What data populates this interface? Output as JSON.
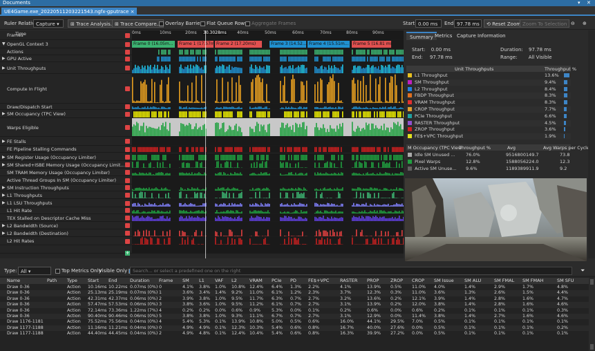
{
  "window": {
    "title": "Documents"
  },
  "tab": {
    "label": "UE4Game.exe_20220511203221543.ngfx-gputrace",
    "close": "×"
  },
  "toolbar": {
    "ruler_label": "Ruler Relative",
    "ruler_value": "Capture",
    "trace_analysis": "Trace Analysis...",
    "trace_compare": "Trace Compare...",
    "overlay_barriers": "Overlay Barriers",
    "flat_queue_rows": "Flat Queue Rows",
    "aggregate_frames": "Aggregate Frames",
    "start_label": "Start:",
    "start_value": "0.00 ms",
    "end_label": "End:",
    "end_value": "97.78 ms",
    "reset_zoom": "Reset Zoom",
    "zoom_to_selection": "Zoom To Selection"
  },
  "timeline": {
    "time_label": "Time",
    "ticks": [
      "0ms",
      "10ms",
      "20ms",
      "30.3028ms",
      "40ms",
      "50ms",
      "60ms",
      "70ms",
      "80ms",
      "90ms"
    ],
    "frames": [
      "Frame 0 (16.05m...",
      "Frame 1 (17.57ms)",
      "Frame 2 (17.20ms)",
      "Frame 3 (14.52...",
      "Frame 4 (15.51m...",
      "Frame 5 (16.81 ms)"
    ],
    "rows": [
      "Frames",
      "OpenGL Context 3",
      "Actions",
      "GPU Active",
      "Unit Throughputs",
      "Compute In Flight",
      "Draw/Dispatch Start",
      "SM Occupancy (TPC View)",
      "Warps Eligible",
      "FE Stalls",
      "FE Pipeline Stalling Commands",
      "SM Register Usage (Occupancy Limiter)",
      "SM Shared+ISBE Memory Usage (Occupancy Limit...",
      "SM TRAM Memory Usage (Occupancy Limiter)",
      "Active Thread Groups In SM (Occupancy Limiter)",
      "SM Instruction Throughputs",
      "L1 Throughputs",
      "L1 LSU Throughputs",
      "L1 Hit Rate",
      "TEX Stalled on Descriptor Cache Miss",
      "L2 Bandwidth (Source)",
      "L2 Bandwidth (Destination)",
      "L2 Hit Rates"
    ]
  },
  "right": {
    "tabs": [
      "Summary",
      "Metrics",
      "Capture Information"
    ],
    "start_label": "Start:",
    "start_value": "0.00 ms",
    "end_label": "End:",
    "end_value": "97.78 ms",
    "duration_label": "Duration:",
    "duration_value": "97.78 ms",
    "range_label": "Range:",
    "range_value": "All Visible",
    "unit_header": "Unit Throughputs",
    "unit_pct_header": "Throughput %",
    "units": [
      {
        "name": "L1 Throughput",
        "pct": "13.6%",
        "v": 13.6,
        "color": "#e8c020"
      },
      {
        "name": "SM Throughput",
        "pct": "9.4%",
        "v": 9.4,
        "color": "#c020c0"
      },
      {
        "name": "L2 Throughput",
        "pct": "8.4%",
        "v": 8.4,
        "color": "#2080e0"
      },
      {
        "name": "FBDP Throughput",
        "pct": "8.3%",
        "v": 8.3,
        "color": "#e07020"
      },
      {
        "name": "VRAM Throughput",
        "pct": "8.3%",
        "v": 8.3,
        "color": "#e03030"
      },
      {
        "name": "CROP Throughput",
        "pct": "7.7%",
        "v": 7.7,
        "color": "#e0a030"
      },
      {
        "name": "PCIe Throughput",
        "pct": "6.6%",
        "v": 6.6,
        "color": "#20a0a0"
      },
      {
        "name": "RASTER Throughput",
        "pct": "4.5%",
        "v": 4.5,
        "color": "#9050d0"
      },
      {
        "name": "ZROP Throughput",
        "pct": "3.6%",
        "v": 3.6,
        "color": "#d02020"
      },
      {
        "name": "FE$+VPC Throughput",
        "pct": "1.9%",
        "v": 1.9,
        "color": "#e0e020"
      }
    ],
    "occ_headers": [
      "M Occupancy (TPC View",
      "Throughput %",
      "Avg",
      "Avg Warps per Cycle"
    ],
    "occ": [
      {
        "name": "Idle SM Unused ...",
        "pct": "76.0%",
        "avg": "9516800149.7",
        "warps": "73.8",
        "color": "#aaaaaa"
      },
      {
        "name": "Pixel Warps",
        "pct": "12.8%",
        "avg": "1588056224.0",
        "warps": "12.3",
        "color": "#20a040"
      },
      {
        "name": "Active SM Unuse...",
        "pct": "9.6%",
        "avg": "1189389911.9",
        "warps": "9.2",
        "color": "#606060"
      }
    ]
  },
  "filter": {
    "type_label": "Type:",
    "type_value": "All",
    "top_metrics": "Top Metrics Only",
    "visible_only": "Visible Only",
    "search_placeholder": "Search... or select a predefined one on the right"
  },
  "grid": {
    "headers": [
      "Name",
      "Path",
      "Type",
      "Start",
      "End",
      "Duration",
      "Frame",
      "SM",
      "L1",
      "VAF",
      "L2",
      "VRAM",
      "PCIe",
      "PD",
      "FE$+VPC",
      "RASTER",
      "PROP",
      "ZROP",
      "CROP",
      "SM Issue",
      "SM ALU",
      "SM FMAL",
      "SM FMAH",
      "SM SFU"
    ],
    "rows": [
      [
        "Draw 0-36",
        "",
        "Action",
        "10.16ms",
        "10.22ms",
        "0.07ms (0%)",
        "0",
        "4.1%",
        "3.8%",
        "1.0%",
        "10.8%",
        "12.4%",
        "6.4%",
        "1.3%",
        "2.2%",
        "4.1%",
        "13.9%",
        "0.5%",
        "11.0%",
        "4.0%",
        "1.4%",
        "2.9%",
        "1.7%",
        "4.8%"
      ],
      [
        "Draw 0-36",
        "",
        "Action",
        "25.13ms",
        "25.19ms",
        "0.07ms (0%)",
        "1",
        "3.6%",
        "3.4%",
        "1.4%",
        "9.2%",
        "11.0%",
        "6.1%",
        "1.2%",
        "2.3%",
        "3.7%",
        "12.3%",
        "0.3%",
        "11.0%",
        "3.6%",
        "1.3%",
        "2.6%",
        "1.5%",
        "4.4%"
      ],
      [
        "Draw 0-36",
        "",
        "Action",
        "42.31ms",
        "42.37ms",
        "0.06ms (0%)",
        "2",
        "3.9%",
        "3.8%",
        "1.0%",
        "9.5%",
        "11.7%",
        "6.3%",
        "0.7%",
        "2.7%",
        "3.2%",
        "13.6%",
        "0.2%",
        "12.1%",
        "3.9%",
        "1.4%",
        "2.8%",
        "1.6%",
        "4.7%"
      ],
      [
        "Draw 0-36",
        "",
        "Action",
        "57.47ms",
        "57.53ms",
        "0.06ms (0%)",
        "3",
        "3.8%",
        "3.6%",
        "1.0%",
        "9.5%",
        "11.2%",
        "6.1%",
        "0.7%",
        "2.7%",
        "3.1%",
        "13.9%",
        "0.2%",
        "12.0%",
        "3.8%",
        "1.4%",
        "2.8%",
        "1.6%",
        "4.6%"
      ],
      [
        "Draw 0-36",
        "",
        "Action",
        "72.14ms",
        "73.36ms",
        "1.22ms (7%)",
        "4",
        "0.2%",
        "0.2%",
        "0.0%",
        "0.6%",
        "0.9%",
        "5.3%",
        "0.0%",
        "0.1%",
        "0.2%",
        "0.6%",
        "0.0%",
        "0.6%",
        "0.2%",
        "0.1%",
        "0.1%",
        "0.1%",
        "0.3%"
      ],
      [
        "Draw 0-36",
        "",
        "Action",
        "90.40ms",
        "90.46ms",
        "0.06ms (0%)",
        "5",
        "3.8%",
        "3.8%",
        "1.0%",
        "9.3%",
        "11.1%",
        "6.7%",
        "0.7%",
        "2.7%",
        "3.1%",
        "12.9%",
        "0.0%",
        "11.4%",
        "3.8%",
        "1.4%",
        "2.7%",
        "1.6%",
        "4.6%"
      ],
      [
        "Draw 1176-1181",
        "",
        "Action",
        "75.52ms",
        "75.56ms",
        "0.04ms (0%)",
        "4",
        "5.4%",
        "5.3%",
        "0.1%",
        "13.9%",
        "10.8%",
        "5.0%",
        "0.5%",
        "0.6%",
        "16.0%",
        "44.1%",
        "29.5%",
        "7.0%",
        "0.5%",
        "0.1%",
        "0.1%",
        "0.1%",
        "0.1%"
      ],
      [
        "Draw 1177-1188",
        "",
        "Action",
        "11.16ms",
        "11.21ms",
        "0.04ms (0%)",
        "0",
        "4.9%",
        "4.9%",
        "0.1%",
        "12.3%",
        "10.3%",
        "5.4%",
        "0.6%",
        "0.8%",
        "16.7%",
        "40.0%",
        "27.6%",
        "0.0%",
        "0.5%",
        "0.1%",
        "0.1%",
        "0.1%",
        "0.2%"
      ],
      [
        "Draw 1177-1188",
        "",
        "Action",
        "44.40ms",
        "44.45ms",
        "0.04ms (0%)",
        "2",
        "4.9%",
        "4.8%",
        "0.1%",
        "12.4%",
        "10.4%",
        "5.4%",
        "0.6%",
        "0.8%",
        "16.3%",
        "39.9%",
        "27.2%",
        "0.0%",
        "0.5%",
        "0.1%",
        "0.1%",
        "0.1%",
        "0.1%"
      ]
    ]
  },
  "colors": {
    "accent": "#3d85c6",
    "frame_green": "#3cb371",
    "frame_red": "#e05050",
    "gpu_blue": "#2090d0",
    "yellow": "#f0f000"
  }
}
